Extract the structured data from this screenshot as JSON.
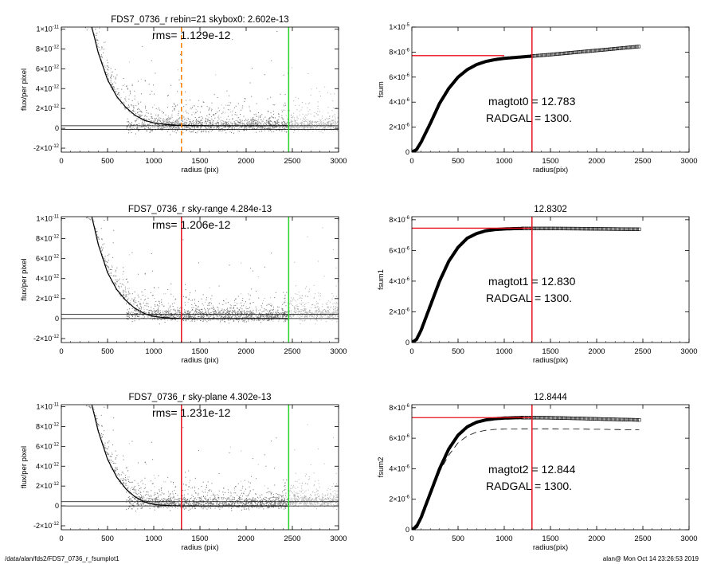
{
  "footer": {
    "path": "/data/alan/fds2/FDS7_0736_r_fsumplot1",
    "stamp": "alan@  Mon Oct 14 23:26:53 2019"
  },
  "colors": {
    "sky_line": "#ff7f00",
    "radgal_line": "#e8101a",
    "edge_line": "#28d428",
    "points": "#6f6f6f",
    "points_light": "#b0b0b0"
  },
  "chart_data": [
    {
      "type": "scatter",
      "title": "FDS7_0736_r rebin=21    skybox0:  2.602e-13",
      "annotation": "rms= 1.129e-12",
      "xlabel": "radius (pix)",
      "ylabel": "flux/per pixel",
      "xlim": [
        0,
        3000
      ],
      "ylim": [
        -2.4e-12,
        1.02e-11
      ],
      "xticks": [
        0,
        500,
        1000,
        1500,
        2000,
        2500,
        3000
      ],
      "yticks": [
        {
          "value": 1e-11,
          "label": "1×10",
          "exp": "-11"
        },
        {
          "value": 8e-12,
          "label": "8×10",
          "exp": "-12"
        },
        {
          "value": 6e-12,
          "label": "6×10",
          "exp": "-12"
        },
        {
          "value": 4e-12,
          "label": "4×10",
          "exp": "-12"
        },
        {
          "value": 2e-12,
          "label": "2×10",
          "exp": "-12"
        },
        {
          "value": 0,
          "label": "0",
          "exp": ""
        },
        {
          "value": -2e-12,
          "label": "-2×10",
          "exp": "-12"
        }
      ],
      "profile": {
        "x": [
          330,
          400,
          500,
          600,
          700,
          800,
          900,
          1000,
          1100,
          1200,
          1300,
          1500,
          2000,
          2450
        ],
        "y": [
          1.02e-11,
          7.6e-12,
          4.9e-12,
          3.2e-12,
          2.1e-12,
          1.3e-12,
          8e-13,
          5.5e-13,
          4.2e-13,
          3.4e-13,
          3e-13,
          2.7e-13,
          2.6e-13,
          2.6e-13
        ]
      },
      "hlines": [
        2.602e-13,
        -1e-13
      ],
      "vlines": [
        {
          "x": 1300,
          "color": "#ff7f00",
          "style": "dashed"
        },
        {
          "x": 2460,
          "color": "#28d428",
          "style": "solid"
        }
      ]
    },
    {
      "type": "line",
      "title": "",
      "annotation_lines": [
        "magtot0 =  12.783",
        "RADGAL =   1300."
      ],
      "xlabel": "radius(pix)",
      "ylabel": "fsum",
      "xlim": [
        0,
        3000
      ],
      "ylim": [
        0,
        1e-05
      ],
      "xticks": [
        0,
        500,
        1000,
        1500,
        2000,
        2500,
        3000
      ],
      "yticks": [
        {
          "value": 1e-05,
          "label": "1×10",
          "exp": "-5"
        },
        {
          "value": 8e-06,
          "label": "8×10",
          "exp": "-6"
        },
        {
          "value": 6e-06,
          "label": "6×10",
          "exp": "-6"
        },
        {
          "value": 4e-06,
          "label": "4×10",
          "exp": "-6"
        },
        {
          "value": 2e-06,
          "label": "2×10",
          "exp": "-6"
        },
        {
          "value": 0,
          "label": "0",
          "exp": ""
        }
      ],
      "curve": {
        "x": [
          0,
          50,
          100,
          200,
          300,
          400,
          500,
          600,
          700,
          800,
          900,
          1000,
          1100,
          1200,
          1300,
          1500,
          1800,
          2100,
          2460
        ],
        "y": [
          0,
          2e-07,
          8e-07,
          2.3e-06,
          3.9e-06,
          5.1e-06,
          6e-06,
          6.6e-06,
          7e-06,
          7.25e-06,
          7.4e-06,
          7.5e-06,
          7.56e-06,
          7.62e-06,
          7.68e-06,
          7.8e-06,
          8e-06,
          8.2e-06,
          8.45e-06
        ]
      },
      "square_from_x": 1300,
      "hline": {
        "y": 7.72e-06,
        "x_end": 1000
      },
      "vline_x": 1300
    },
    {
      "type": "scatter",
      "title": "FDS7_0736_r sky-range  4.284e-13",
      "annotation": "rms= 1.206e-12",
      "xlabel": "radius (pix)",
      "ylabel": "flux/per pixel",
      "xlim": [
        0,
        3000
      ],
      "ylim": [
        -2.4e-12,
        1.02e-11
      ],
      "xticks": [
        0,
        500,
        1000,
        1500,
        2000,
        2500,
        3000
      ],
      "yticks": [
        {
          "value": 1e-11,
          "label": "1×10",
          "exp": "-11"
        },
        {
          "value": 8e-12,
          "label": "8×10",
          "exp": "-12"
        },
        {
          "value": 6e-12,
          "label": "6×10",
          "exp": "-12"
        },
        {
          "value": 4e-12,
          "label": "4×10",
          "exp": "-12"
        },
        {
          "value": 2e-12,
          "label": "2×10",
          "exp": "-12"
        },
        {
          "value": 0,
          "label": "0",
          "exp": ""
        },
        {
          "value": -2e-12,
          "label": "-2×10",
          "exp": "-12"
        }
      ],
      "profile": {
        "x": [
          330,
          400,
          500,
          600,
          700,
          800,
          900,
          1000,
          1100,
          1200,
          1300,
          1500,
          2000,
          2450
        ],
        "y": [
          1.02e-11,
          7.4e-12,
          4.6e-12,
          2.9e-12,
          1.8e-12,
          1e-12,
          5e-13,
          2.2e-13,
          1e-13,
          4e-14,
          1e-14,
          0,
          0,
          0
        ]
      },
      "hlines": [
        4.284e-13,
        0
      ],
      "vlines": [
        {
          "x": 1300,
          "color": "#e8101a",
          "style": "solid"
        },
        {
          "x": 2460,
          "color": "#28d428",
          "style": "solid"
        }
      ]
    },
    {
      "type": "line",
      "title": "12.8302",
      "annotation_lines": [
        "magtot1 =  12.830",
        "RADGAL =   1300."
      ],
      "xlabel": "radius(pix)",
      "ylabel": "fsum1",
      "xlim": [
        0,
        3000
      ],
      "ylim": [
        0,
        8.2e-06
      ],
      "xticks": [
        0,
        500,
        1000,
        1500,
        2000,
        2500,
        3000
      ],
      "yticks": [
        {
          "value": 8e-06,
          "label": "8×10",
          "exp": "-6"
        },
        {
          "value": 6e-06,
          "label": "6×10",
          "exp": "-6"
        },
        {
          "value": 4e-06,
          "label": "4×10",
          "exp": "-6"
        },
        {
          "value": 2e-06,
          "label": "2×10",
          "exp": "-6"
        },
        {
          "value": 0,
          "label": "0",
          "exp": ""
        }
      ],
      "curve": {
        "x": [
          0,
          50,
          100,
          200,
          300,
          400,
          500,
          600,
          700,
          800,
          900,
          1000,
          1100,
          1200,
          1300,
          1500,
          1800,
          2100,
          2460
        ],
        "y": [
          0,
          2e-07,
          8e-07,
          2.4e-06,
          4e-06,
          5.3e-06,
          6.2e-06,
          6.8e-06,
          7.1e-06,
          7.28e-06,
          7.36e-06,
          7.4e-06,
          7.42e-06,
          7.43e-06,
          7.43e-06,
          7.43e-06,
          7.42e-06,
          7.4e-06,
          7.38e-06
        ]
      },
      "square_from_x": 1200,
      "hline": {
        "y": 7.45e-06,
        "x_end": 1300
      },
      "vline_x": 1300
    },
    {
      "type": "scatter",
      "title": "FDS7_0736_r sky-plane  4.302e-13",
      "annotation": "rms= 1.231e-12",
      "xlabel": "radius (pix)",
      "ylabel": "flux/per pixel",
      "xlim": [
        0,
        3000
      ],
      "ylim": [
        -2.4e-12,
        1.02e-11
      ],
      "xticks": [
        0,
        500,
        1000,
        1500,
        2000,
        2500,
        3000
      ],
      "yticks": [
        {
          "value": 1e-11,
          "label": "1×10",
          "exp": "-11"
        },
        {
          "value": 8e-12,
          "label": "8×10",
          "exp": "-12"
        },
        {
          "value": 6e-12,
          "label": "6×10",
          "exp": "-12"
        },
        {
          "value": 4e-12,
          "label": "4×10",
          "exp": "-12"
        },
        {
          "value": 2e-12,
          "label": "2×10",
          "exp": "-12"
        },
        {
          "value": 0,
          "label": "0",
          "exp": ""
        },
        {
          "value": -2e-12,
          "label": "-2×10",
          "exp": "-12"
        }
      ],
      "profile": {
        "x": [
          330,
          400,
          500,
          600,
          700,
          800,
          900,
          1000,
          1100,
          1200,
          1300,
          1500,
          2000,
          2450
        ],
        "y": [
          1.02e-11,
          7.5e-12,
          4.7e-12,
          2.9e-12,
          1.7e-12,
          9e-13,
          4e-13,
          1.5e-13,
          6e-14,
          2e-14,
          0,
          0,
          0,
          0
        ]
      },
      "hlines": [
        4.302e-13,
        0
      ],
      "vlines": [
        {
          "x": 1300,
          "color": "#e8101a",
          "style": "solid"
        },
        {
          "x": 2460,
          "color": "#28d428",
          "style": "solid"
        }
      ]
    },
    {
      "type": "line",
      "title": "12.8444",
      "annotation_lines": [
        "magtot2 =  12.844",
        "RADGAL =   1300."
      ],
      "xlabel": "radius(pix)",
      "ylabel": "fsum2",
      "xlim": [
        0,
        3000
      ],
      "ylim": [
        0,
        8.2e-06
      ],
      "xticks": [
        0,
        500,
        1000,
        1500,
        2000,
        2500,
        3000
      ],
      "yticks": [
        {
          "value": 8e-06,
          "label": "8×10",
          "exp": "-6"
        },
        {
          "value": 6e-06,
          "label": "6×10",
          "exp": "-6"
        },
        {
          "value": 4e-06,
          "label": "4×10",
          "exp": "-6"
        },
        {
          "value": 2e-06,
          "label": "2×10",
          "exp": "-6"
        },
        {
          "value": 0,
          "label": "0",
          "exp": ""
        }
      ],
      "curve": {
        "x": [
          0,
          50,
          100,
          200,
          300,
          400,
          500,
          600,
          700,
          800,
          900,
          1000,
          1100,
          1200,
          1300,
          1500,
          1800,
          2100,
          2460
        ],
        "y": [
          0,
          2e-07,
          8e-07,
          2.4e-06,
          4e-06,
          5.3e-06,
          6.2e-06,
          6.75e-06,
          7.05e-06,
          7.2e-06,
          7.28e-06,
          7.32e-06,
          7.34e-06,
          7.35e-06,
          7.35e-06,
          7.34e-06,
          7.3e-06,
          7.25e-06,
          7.2e-06
        ]
      },
      "dashed_curve": {
        "x": [
          0,
          100,
          200,
          300,
          400,
          500,
          600,
          700,
          800,
          900,
          1000,
          1200,
          1500,
          1800,
          2100,
          2460
        ],
        "y": [
          0,
          8e-07,
          2.3e-06,
          3.8e-06,
          4.9e-06,
          5.7e-06,
          6.15e-06,
          6.4e-06,
          6.52e-06,
          6.58e-06,
          6.6e-06,
          6.62e-06,
          6.62e-06,
          6.6e-06,
          6.58e-06,
          6.55e-06
        ]
      },
      "square_from_x": 1200,
      "hline": {
        "y": 7.35e-06,
        "x_end": 1300
      },
      "vline_x": 1300
    }
  ]
}
